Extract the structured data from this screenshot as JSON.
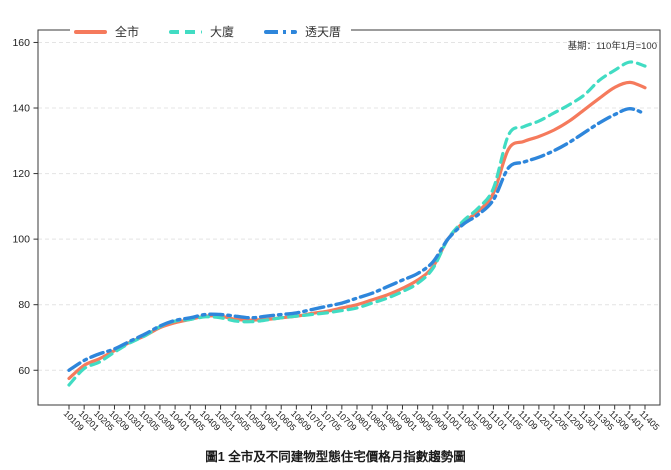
{
  "chart_data": {
    "type": "line",
    "title": "圖1 全市及不同建物型態住宅價格月指數趨勢圖",
    "base_note": "基期：110年1月=100",
    "legend_position": "top-left",
    "grid": true,
    "x_label_rotation": 45,
    "ylim": [
      49.4,
      163.8
    ],
    "y_ticks": [
      60,
      80,
      100,
      120,
      140,
      160
    ],
    "categories": [
      "10109",
      "10201",
      "10205",
      "10209",
      "10301",
      "10305",
      "10309",
      "10401",
      "10405",
      "10409",
      "10501",
      "10505",
      "10509",
      "10601",
      "10605",
      "10609",
      "10701",
      "10705",
      "10709",
      "10801",
      "10805",
      "10809",
      "10901",
      "10905",
      "10909",
      "11001",
      "11005",
      "11009",
      "11101",
      "11105",
      "11109",
      "11201",
      "11205",
      "11209",
      "11301",
      "11305",
      "11309",
      "11401",
      "11405"
    ],
    "series": [
      {
        "name": "全市",
        "color": "#F57A5C",
        "line_style": "solid",
        "values": [
          57.5,
          61.5,
          63.5,
          66,
          68.5,
          70.5,
          73,
          74.5,
          75.5,
          76.5,
          76.5,
          75.5,
          75.3,
          75.5,
          76,
          76.5,
          77.3,
          78,
          79,
          80,
          81.5,
          83,
          85,
          87.5,
          91.5,
          100,
          105,
          108.5,
          114,
          127.5,
          129.8,
          131.3,
          133.3,
          136,
          139.5,
          143,
          146.3,
          147.8,
          146.2
        ]
      },
      {
        "name": "大廈",
        "color": "#41DCC3",
        "line_style": "dashed",
        "values": [
          55.5,
          60.5,
          62.5,
          65.5,
          68.3,
          70.5,
          73.3,
          75,
          75.5,
          76.3,
          76,
          75,
          74.8,
          75.3,
          76,
          76.5,
          77,
          77.5,
          78.2,
          79,
          80.5,
          82,
          84,
          86.5,
          91,
          100,
          105.5,
          109.5,
          115.5,
          131.8,
          134.3,
          136,
          138.5,
          141,
          144,
          148.5,
          151.5,
          154,
          152.8
        ]
      },
      {
        "name": "透天厝",
        "color": "#2E86DB",
        "line_style": "dash-dot",
        "values": [
          60,
          63,
          65,
          66.5,
          68.8,
          71,
          73.5,
          75.2,
          76,
          77,
          77,
          76.5,
          76,
          76.5,
          77,
          77.5,
          78.5,
          79.5,
          80.5,
          82,
          83.5,
          85.5,
          87.5,
          89.5,
          93,
          100,
          104.5,
          107.5,
          112,
          121.8,
          123.5,
          125,
          127,
          129.5,
          132.5,
          135.5,
          138,
          139.8,
          138.2
        ]
      }
    ]
  }
}
